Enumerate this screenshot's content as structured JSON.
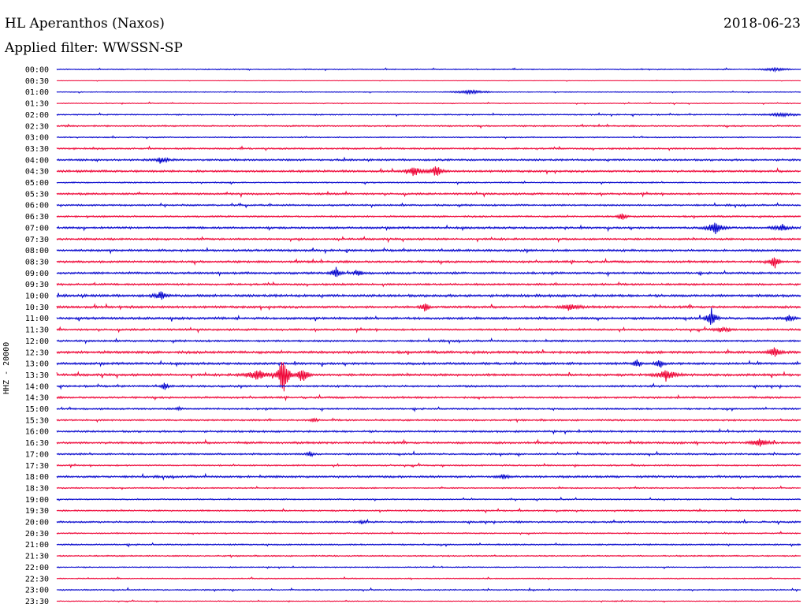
{
  "header": {
    "station": "HL Aperanthos (Naxos)",
    "date": "2018-06-23",
    "filter": "Applied filter: WWSSN-SP"
  },
  "channel_label": "HHZ - 20000",
  "colors": {
    "odd_trace": "#0000cc",
    "even_trace": "#ee0033"
  },
  "chart_data": {
    "type": "line",
    "title": "HL Aperanthos (Naxos)",
    "date": "2018-06-23",
    "filter": "WWSSN-SP",
    "ylabel": "HHZ - 20000",
    "row_labels": [
      "00:00",
      "00:30",
      "01:00",
      "01:30",
      "02:00",
      "02:30",
      "03:00",
      "03:30",
      "04:00",
      "04:30",
      "05:00",
      "05:30",
      "06:00",
      "06:30",
      "07:00",
      "07:30",
      "08:00",
      "08:30",
      "09:00",
      "09:30",
      "10:00",
      "10:30",
      "11:00",
      "11:30",
      "12:00",
      "12:30",
      "13:00",
      "13:30",
      "14:00",
      "14:30",
      "15:00",
      "15:30",
      "16:00",
      "16:30",
      "17:00",
      "17:30",
      "18:00",
      "18:30",
      "19:00",
      "19:30",
      "20:00",
      "20:30",
      "21:00",
      "21:30",
      "22:00",
      "22:30",
      "23:00",
      "23:30"
    ],
    "row_colors": [
      "blue",
      "red"
    ],
    "noise_levels": [
      0.5,
      0.2,
      0.4,
      0.4,
      0.6,
      0.7,
      0.5,
      0.8,
      0.9,
      1.0,
      0.6,
      0.9,
      0.8,
      0.8,
      1.0,
      0.9,
      1.0,
      1.0,
      1.0,
      0.9,
      1.2,
      1.1,
      1.1,
      0.9,
      0.9,
      1.2,
      1.1,
      1.1,
      0.9,
      0.9,
      0.8,
      0.8,
      0.9,
      1.0,
      0.8,
      0.7,
      1.0,
      0.6,
      0.6,
      0.7,
      0.8,
      0.6,
      0.7,
      0.6,
      0.5,
      0.5,
      0.6,
      0.4
    ],
    "events": [
      {
        "row": 0,
        "t": 0.965,
        "amp": 2.0,
        "dur": 0.03
      },
      {
        "row": 2,
        "t": 0.555,
        "amp": 2.5,
        "dur": 0.04
      },
      {
        "row": 4,
        "t": 0.975,
        "amp": 2.0,
        "dur": 0.035
      },
      {
        "row": 8,
        "t": 0.14,
        "amp": 3.0,
        "dur": 0.02
      },
      {
        "row": 9,
        "t": 0.48,
        "amp": 6.0,
        "dur": 0.02
      },
      {
        "row": 9,
        "t": 0.51,
        "amp": 8.0,
        "dur": 0.015
      },
      {
        "row": 13,
        "t": 0.76,
        "amp": 6.0,
        "dur": 0.01
      },
      {
        "row": 14,
        "t": 0.885,
        "amp": 8.0,
        "dur": 0.02
      },
      {
        "row": 14,
        "t": 0.975,
        "amp": 4.0,
        "dur": 0.02
      },
      {
        "row": 17,
        "t": 0.965,
        "amp": 9.0,
        "dur": 0.012
      },
      {
        "row": 18,
        "t": 0.375,
        "amp": 8.0,
        "dur": 0.012
      },
      {
        "row": 18,
        "t": 0.405,
        "amp": 4.0,
        "dur": 0.012
      },
      {
        "row": 20,
        "t": 0.14,
        "amp": 5.0,
        "dur": 0.015
      },
      {
        "row": 21,
        "t": 0.495,
        "amp": 6.0,
        "dur": 0.01
      },
      {
        "row": 21,
        "t": 0.69,
        "amp": 5.0,
        "dur": 0.02
      },
      {
        "row": 22,
        "t": 0.88,
        "amp": 12.0,
        "dur": 0.012
      },
      {
        "row": 22,
        "t": 0.985,
        "amp": 4.0,
        "dur": 0.01
      },
      {
        "row": 23,
        "t": 0.895,
        "amp": 3.0,
        "dur": 0.02
      },
      {
        "row": 25,
        "t": 0.965,
        "amp": 7.0,
        "dur": 0.015
      },
      {
        "row": 26,
        "t": 0.78,
        "amp": 6.0,
        "dur": 0.01
      },
      {
        "row": 26,
        "t": 0.81,
        "amp": 5.0,
        "dur": 0.01
      },
      {
        "row": 27,
        "t": 0.305,
        "amp": 32.0,
        "dur": 0.012
      },
      {
        "row": 27,
        "t": 0.33,
        "amp": 10.0,
        "dur": 0.015
      },
      {
        "row": 27,
        "t": 0.27,
        "amp": 6.0,
        "dur": 0.03
      },
      {
        "row": 27,
        "t": 0.82,
        "amp": 7.0,
        "dur": 0.025
      },
      {
        "row": 28,
        "t": 0.145,
        "amp": 5.0,
        "dur": 0.008
      },
      {
        "row": 30,
        "t": 0.165,
        "amp": 2.0,
        "dur": 0.01
      },
      {
        "row": 31,
        "t": 0.345,
        "amp": 3.0,
        "dur": 0.008
      },
      {
        "row": 33,
        "t": 0.945,
        "amp": 5.0,
        "dur": 0.02
      },
      {
        "row": 34,
        "t": 0.34,
        "amp": 3.0,
        "dur": 0.01
      },
      {
        "row": 36,
        "t": 0.6,
        "amp": 2.5,
        "dur": 0.015
      },
      {
        "row": 40,
        "t": 0.41,
        "amp": 2.0,
        "dur": 0.01
      }
    ]
  }
}
